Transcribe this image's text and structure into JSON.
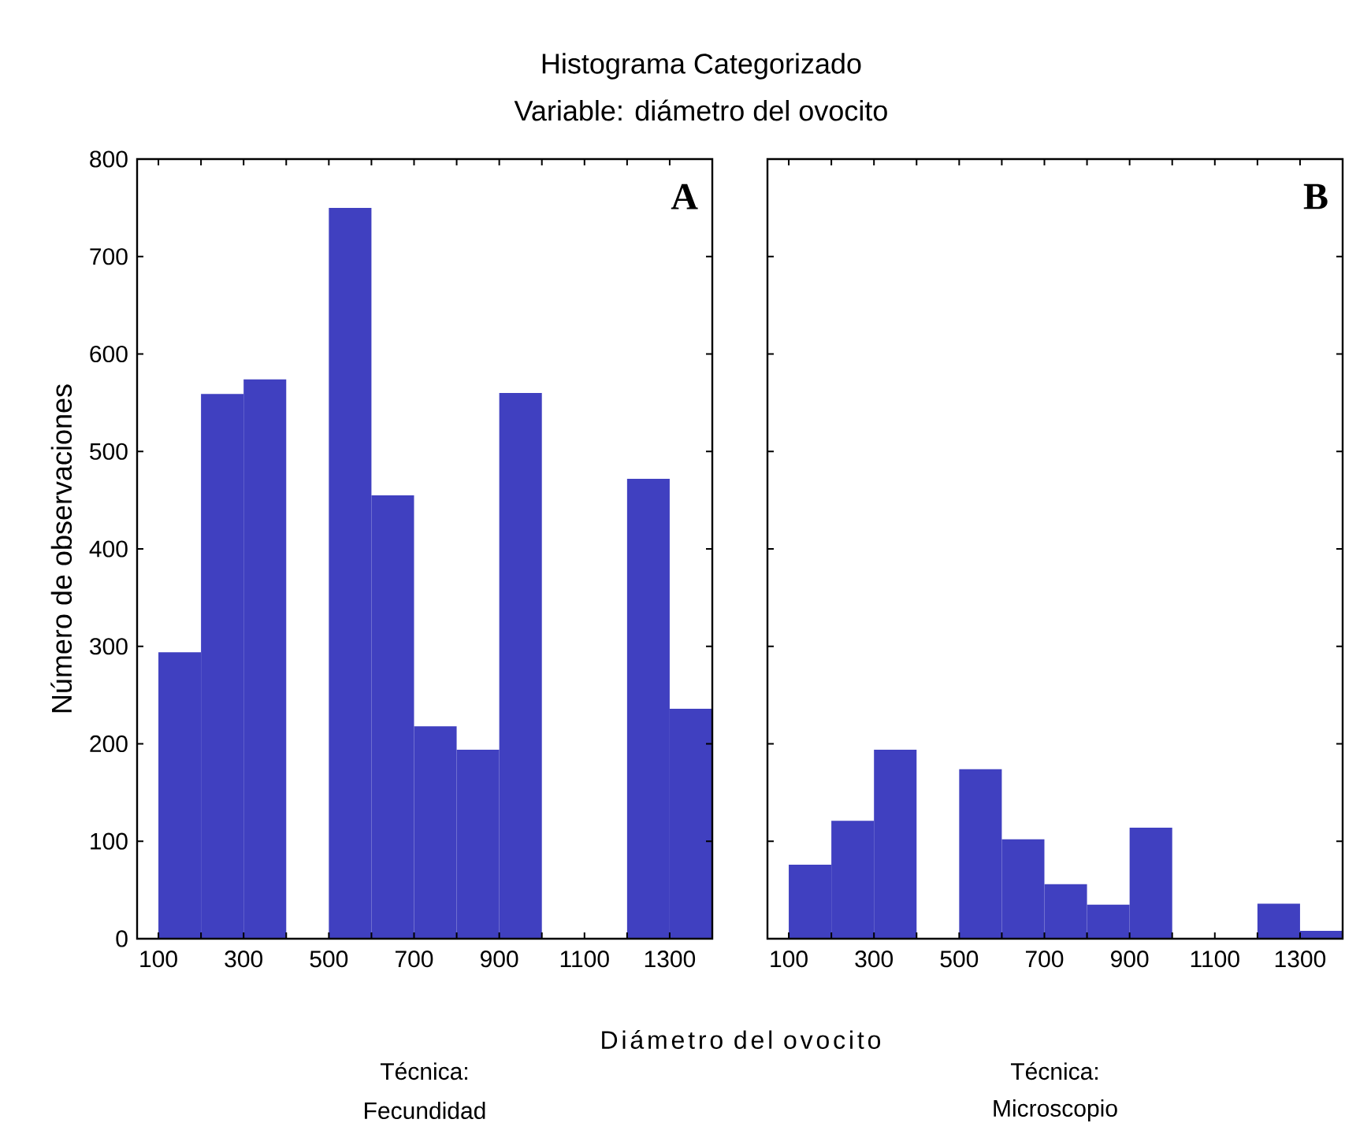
{
  "chart_data": [
    {
      "type": "histogram",
      "title": "Histograma Categorizado",
      "subtitle": "Variable: diámetro del ovocito",
      "xlabel": "Diámetro del ovocito",
      "ylabel": "Número de observaciones",
      "annotations": [
        "A",
        "Técnica:",
        "Fecundidad"
      ],
      "bins": [
        100,
        200,
        300,
        400,
        500,
        600,
        700,
        800,
        900,
        1000,
        1100,
        1200,
        1300,
        1400
      ],
      "values": [
        294,
        559,
        574,
        0,
        750,
        455,
        218,
        194,
        560,
        0,
        0,
        472,
        236
      ],
      "color": "#4040c0",
      "xlim": [
        50,
        1400
      ],
      "ylim": [
        0,
        800
      ],
      "xticks": [
        100,
        {
          "value": 200,
          "label": null
        },
        300,
        {
          "value": 400,
          "label": null
        },
        500,
        {
          "value": 600,
          "label": null
        },
        700,
        {
          "value": 800,
          "label": null
        },
        900,
        {
          "value": 1000,
          "label": null
        },
        1100,
        {
          "value": 1200,
          "label": null
        },
        1300
      ],
      "yticks": [
        0,
        100,
        200,
        300,
        400,
        500,
        600,
        700,
        800
      ],
      "grid": false
    },
    {
      "type": "histogram",
      "annotations": [
        "B",
        "Técnica:",
        "Microscopio"
      ],
      "bins": [
        100,
        200,
        300,
        400,
        500,
        600,
        700,
        800,
        900,
        1000,
        1100,
        1200,
        1300,
        1400
      ],
      "values": [
        76,
        121,
        194,
        0,
        174,
        102,
        56,
        35,
        114,
        0,
        0,
        36,
        8
      ],
      "color": "#4040c0",
      "xlim": [
        50,
        1400
      ],
      "ylim": [
        0,
        800
      ],
      "xticks": [
        100,
        {
          "value": 200,
          "label": null
        },
        300,
        {
          "value": 400,
          "label": null
        },
        500,
        {
          "value": 600,
          "label": null
        },
        700,
        {
          "value": 800,
          "label": null
        },
        900,
        {
          "value": 1000,
          "label": null
        },
        1100,
        {
          "value": 1200,
          "label": null
        },
        1300
      ],
      "yticks": [
        0,
        100,
        200,
        300,
        400,
        500,
        600,
        700,
        800
      ],
      "tick_labels": "x",
      "grid": false
    }
  ]
}
